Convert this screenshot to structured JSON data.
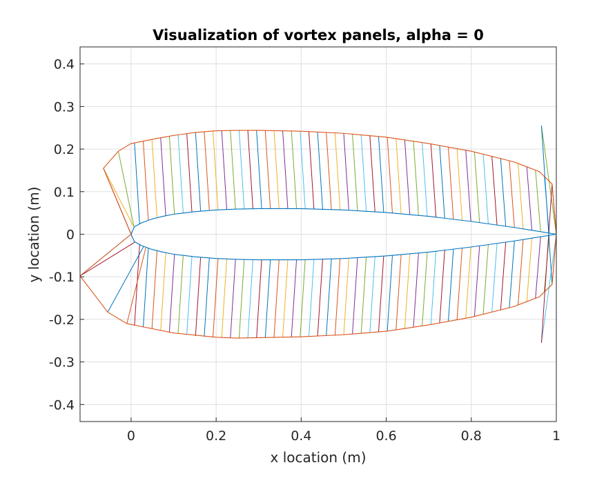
{
  "chart_data": {
    "type": "line",
    "title": "Visualization of vortex panels, alpha = 0",
    "xlabel": "x location (m)",
    "ylabel": "y location (m)",
    "xlim": [
      -0.12,
      1.0
    ],
    "ylim": [
      -0.44,
      0.44
    ],
    "xticks": [
      0,
      0.2,
      0.4,
      0.6,
      0.8,
      1
    ],
    "xtick_labels": [
      "0",
      "0.2",
      "0.4",
      "0.6",
      "0.8",
      "1"
    ],
    "yticks": [
      -0.4,
      -0.3,
      -0.2,
      -0.1,
      0,
      0.1,
      0.2,
      0.3,
      0.4
    ],
    "ytick_labels": [
      "-0.4",
      "-0.3",
      "-0.2",
      "-0.1",
      "0",
      "0.1",
      "0.2",
      "0.3",
      "0.4"
    ],
    "grid": true,
    "series": [
      {
        "color": "#0072bd",
        "x": [
          1.0,
          0.95,
          0.9,
          0.8,
          0.7,
          0.6,
          0.5,
          0.4,
          0.3,
          0.25,
          0.2,
          0.15,
          0.1,
          0.075,
          0.05,
          0.025,
          0.0125,
          0.008,
          0.0,
          0.008,
          0.0125,
          0.025,
          0.05,
          0.075,
          0.1,
          0.15,
          0.2,
          0.25,
          0.3,
          0.4,
          0.5,
          0.6,
          0.7,
          0.8,
          0.9,
          0.95,
          1.0
        ],
        "y": [
          0.0,
          0.008,
          0.016,
          0.03,
          0.042,
          0.051,
          0.057,
          0.06,
          0.06,
          0.059,
          0.057,
          0.053,
          0.047,
          0.042,
          0.036,
          0.027,
          0.02,
          0.018,
          0.0,
          -0.018,
          -0.02,
          -0.027,
          -0.036,
          -0.042,
          -0.047,
          -0.053,
          -0.057,
          -0.059,
          -0.06,
          -0.06,
          -0.057,
          -0.051,
          -0.042,
          -0.03,
          -0.016,
          -0.008,
          0.0
        ]
      },
      {
        "color": "#d95319",
        "x": [
          1.0,
          0.99,
          0.96,
          0.9,
          0.8,
          0.7,
          0.6,
          0.5,
          0.4,
          0.3,
          0.25,
          0.2,
          0.15,
          0.1,
          0.05,
          0.0,
          -0.03,
          -0.065,
          0.0,
          -0.12,
          -0.055,
          -0.01,
          0.03,
          0.1,
          0.2,
          0.25,
          0.3,
          0.4,
          0.5,
          0.6,
          0.7,
          0.8,
          0.9,
          0.96,
          0.99,
          1.0
        ],
        "y": [
          0.0,
          0.118,
          0.147,
          0.17,
          0.195,
          0.213,
          0.228,
          0.237,
          0.242,
          0.244,
          0.244,
          0.243,
          0.239,
          0.232,
          0.223,
          0.213,
          0.195,
          0.155,
          0.0,
          -0.098,
          -0.183,
          -0.21,
          -0.218,
          -0.232,
          -0.242,
          -0.244,
          -0.243,
          -0.241,
          -0.236,
          -0.228,
          -0.213,
          -0.195,
          -0.17,
          -0.147,
          -0.118,
          0.0
        ]
      }
    ],
    "panel_colors": [
      "#0072bd",
      "#d95319",
      "#edb120",
      "#7e2f8e",
      "#77ac30",
      "#4dbeee",
      "#a2142f"
    ]
  }
}
